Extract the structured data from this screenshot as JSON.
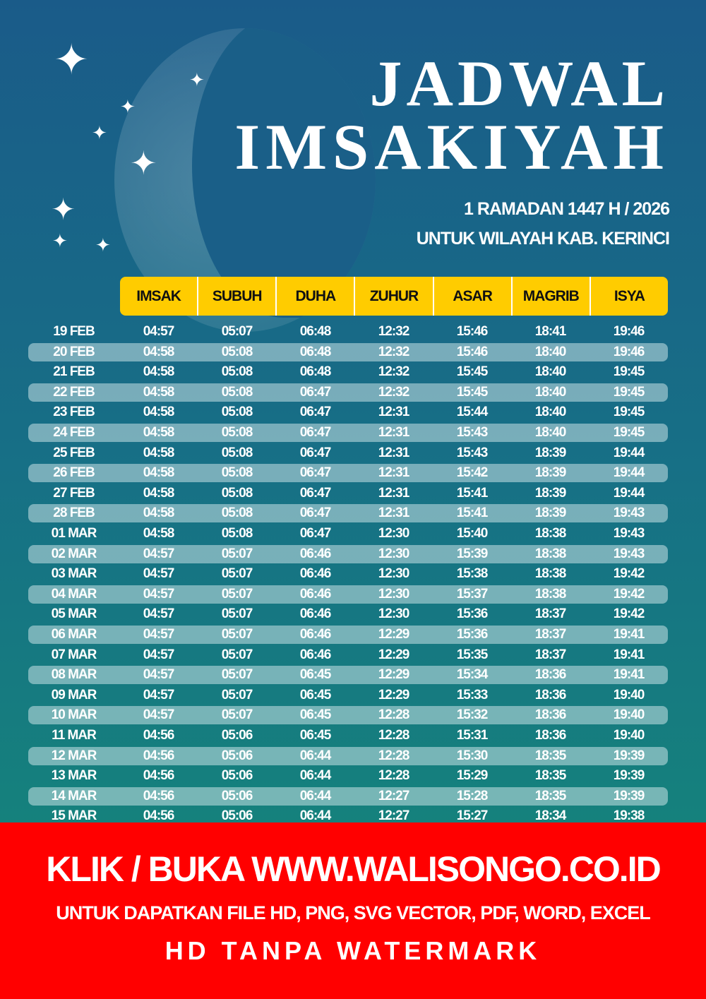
{
  "header": {
    "title_line1": "JADWAL",
    "title_line2": "IMSAKIYAH",
    "subtitle1": "1 RAMADAN 1447 H / 2026",
    "subtitle2": "UNTUK WILAYAH KAB. KERINCI"
  },
  "colors": {
    "header_bg": "#ffcc00",
    "banner_bg": "#ff0000",
    "bg_top": "#1a5b89",
    "bg_bottom": "#148a78"
  },
  "table": {
    "columns": [
      "IMSAK",
      "SUBUH",
      "DUHA",
      "ZUHUR",
      "ASAR",
      "MAGRIB",
      "ISYA"
    ],
    "rows": [
      [
        "19 FEB",
        "04:57",
        "05:07",
        "06:48",
        "12:32",
        "15:46",
        "18:41",
        "19:46"
      ],
      [
        "20 FEB",
        "04:58",
        "05:08",
        "06:48",
        "12:32",
        "15:46",
        "18:40",
        "19:46"
      ],
      [
        "21 FEB",
        "04:58",
        "05:08",
        "06:48",
        "12:32",
        "15:45",
        "18:40",
        "19:45"
      ],
      [
        "22 FEB",
        "04:58",
        "05:08",
        "06:47",
        "12:32",
        "15:45",
        "18:40",
        "19:45"
      ],
      [
        "23 FEB",
        "04:58",
        "05:08",
        "06:47",
        "12:31",
        "15:44",
        "18:40",
        "19:45"
      ],
      [
        "24 FEB",
        "04:58",
        "05:08",
        "06:47",
        "12:31",
        "15:43",
        "18:40",
        "19:45"
      ],
      [
        "25 FEB",
        "04:58",
        "05:08",
        "06:47",
        "12:31",
        "15:43",
        "18:39",
        "19:44"
      ],
      [
        "26 FEB",
        "04:58",
        "05:08",
        "06:47",
        "12:31",
        "15:42",
        "18:39",
        "19:44"
      ],
      [
        "27 FEB",
        "04:58",
        "05:08",
        "06:47",
        "12:31",
        "15:41",
        "18:39",
        "19:44"
      ],
      [
        "28 FEB",
        "04:58",
        "05:08",
        "06:47",
        "12:31",
        "15:41",
        "18:39",
        "19:43"
      ],
      [
        "01 MAR",
        "04:58",
        "05:08",
        "06:47",
        "12:30",
        "15:40",
        "18:38",
        "19:43"
      ],
      [
        "02 MAR",
        "04:57",
        "05:07",
        "06:46",
        "12:30",
        "15:39",
        "18:38",
        "19:43"
      ],
      [
        "03 MAR",
        "04:57",
        "05:07",
        "06:46",
        "12:30",
        "15:38",
        "18:38",
        "19:42"
      ],
      [
        "04 MAR",
        "04:57",
        "05:07",
        "06:46",
        "12:30",
        "15:37",
        "18:38",
        "19:42"
      ],
      [
        "05 MAR",
        "04:57",
        "05:07",
        "06:46",
        "12:30",
        "15:36",
        "18:37",
        "19:42"
      ],
      [
        "06 MAR",
        "04:57",
        "05:07",
        "06:46",
        "12:29",
        "15:36",
        "18:37",
        "19:41"
      ],
      [
        "07 MAR",
        "04:57",
        "05:07",
        "06:46",
        "12:29",
        "15:35",
        "18:37",
        "19:41"
      ],
      [
        "08 MAR",
        "04:57",
        "05:07",
        "06:45",
        "12:29",
        "15:34",
        "18:36",
        "19:41"
      ],
      [
        "09 MAR",
        "04:57",
        "05:07",
        "06:45",
        "12:29",
        "15:33",
        "18:36",
        "19:40"
      ],
      [
        "10 MAR",
        "04:57",
        "05:07",
        "06:45",
        "12:28",
        "15:32",
        "18:36",
        "19:40"
      ],
      [
        "11 MAR",
        "04:56",
        "05:06",
        "06:45",
        "12:28",
        "15:31",
        "18:36",
        "19:40"
      ],
      [
        "12 MAR",
        "04:56",
        "05:06",
        "06:44",
        "12:28",
        "15:30",
        "18:35",
        "19:39"
      ],
      [
        "13 MAR",
        "04:56",
        "05:06",
        "06:44",
        "12:28",
        "15:29",
        "18:35",
        "19:39"
      ],
      [
        "14 MAR",
        "04:56",
        "05:06",
        "06:44",
        "12:27",
        "15:28",
        "18:35",
        "19:39"
      ],
      [
        "15 MAR",
        "04:56",
        "05:06",
        "06:44",
        "12:27",
        "15:27",
        "18:34",
        "19:38"
      ]
    ]
  },
  "banner": {
    "line1": "KLIK / BUKA WWW.WALISONGO.CO.ID",
    "line2": "UNTUK DAPATKAN FILE HD, PNG, SVG VECTOR, PDF, WORD, EXCEL",
    "line3": "HD TANPA WATERMARK"
  }
}
